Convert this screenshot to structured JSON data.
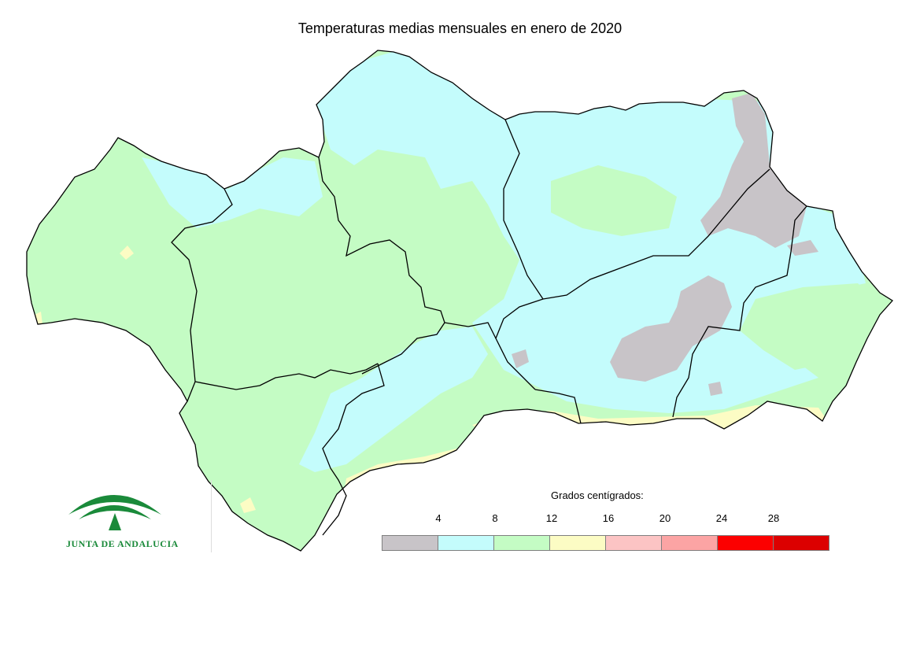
{
  "title": "Temperaturas medias mensuales en enero de 2020",
  "logo": {
    "text": "JUNTA DE ANDALUCIA",
    "color": "#1a8a3a"
  },
  "legend": {
    "title": "Grados centígrados:",
    "ticks": [
      "4",
      "8",
      "12",
      "16",
      "20",
      "24",
      "28"
    ],
    "classes": [
      {
        "range": "<4",
        "color": "#c8c4c8"
      },
      {
        "range": "4-8",
        "color": "#c4fcfc"
      },
      {
        "range": "8-12",
        "color": "#c4fcc4"
      },
      {
        "range": "12-16",
        "color": "#fcfcc4"
      },
      {
        "range": "16-20",
        "color": "#fcc4c4"
      },
      {
        "range": "20-24",
        "color": "#fca4a4"
      },
      {
        "range": "24-28",
        "color": "#fc0000"
      },
      {
        "range": ">28",
        "color": "#dc0000"
      }
    ]
  },
  "map_colors": {
    "background": "#ffffff",
    "boundary": "#000000"
  }
}
